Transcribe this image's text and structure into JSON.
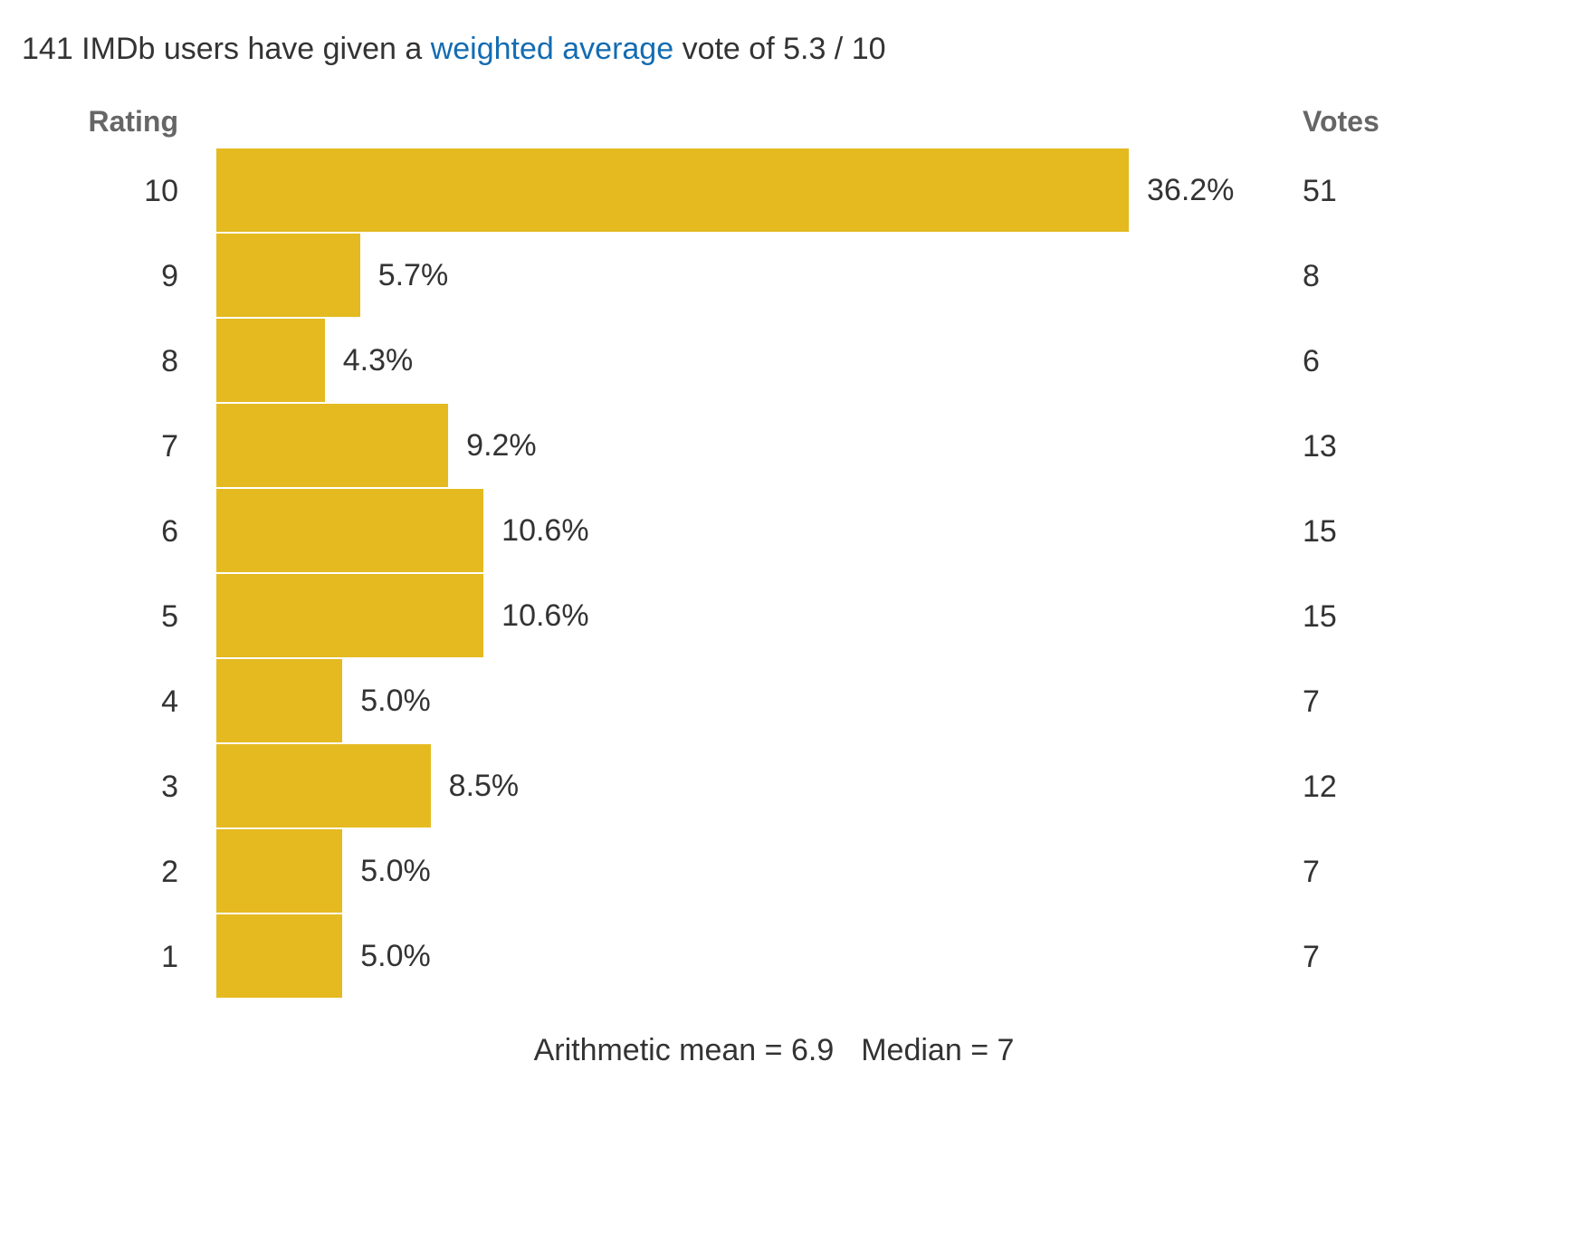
{
  "summary": {
    "prefix": "141 IMDb users have given a ",
    "link_text": "weighted average",
    "suffix": " vote of 5.3 / 10"
  },
  "headers": {
    "rating": "Rating",
    "votes": "Votes"
  },
  "footer": {
    "mean": "Arithmetic mean = 6.9",
    "median": "Median = 7"
  },
  "colors": {
    "bar": "#e4ba20",
    "link": "#136cb2",
    "text": "#333333",
    "header": "#666666"
  },
  "chart_data": {
    "type": "bar",
    "orientation": "horizontal",
    "title": "",
    "xlabel": "",
    "ylabel": "Rating",
    "categories": [
      "10",
      "9",
      "8",
      "7",
      "6",
      "5",
      "4",
      "3",
      "2",
      "1"
    ],
    "values": [
      36.2,
      5.7,
      4.3,
      9.2,
      10.6,
      10.6,
      5.0,
      8.5,
      5.0,
      5.0
    ],
    "value_labels": [
      "36.2%",
      "5.7%",
      "4.3%",
      "9.2%",
      "10.6%",
      "10.6%",
      "5.0%",
      "8.5%",
      "5.0%",
      "5.0%"
    ],
    "votes": [
      "51",
      "8",
      "6",
      "13",
      "15",
      "15",
      "7",
      "12",
      "7",
      "7"
    ],
    "grid": false,
    "legend": "none"
  }
}
